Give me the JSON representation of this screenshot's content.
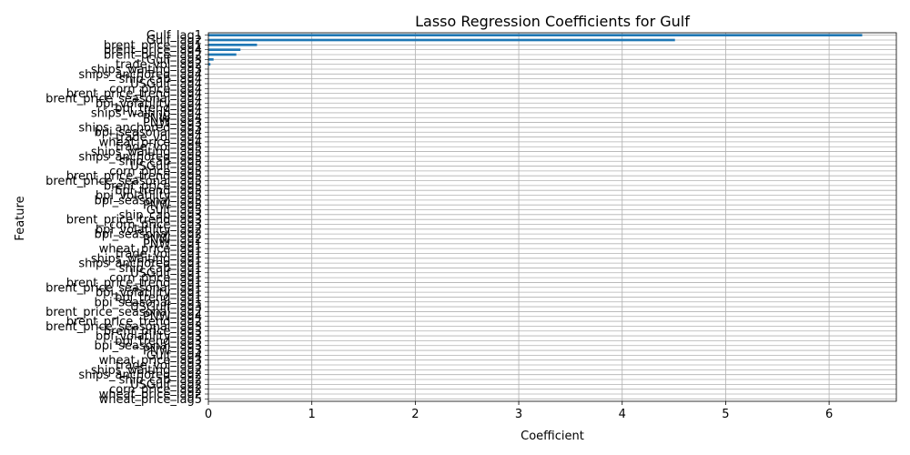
{
  "chart_data": {
    "type": "bar",
    "orientation": "horizontal",
    "title": "Lasso Regression Coefficients for Gulf",
    "xlabel": "Coefficient",
    "ylabel": "Feature",
    "xlim": [
      0,
      6.65
    ],
    "xticks": [
      0,
      1,
      2,
      3,
      4,
      5,
      6
    ],
    "grid": true,
    "bar_color": "#1f77b4",
    "categories": [
      "Gulf_lag1",
      "Gulf_lag2",
      "brent_price_lag1",
      "brent_price_lag4",
      "brent_price_lag2",
      "Gulf_lag3",
      "trade_vol_lag2",
      "ships_waiting_lag3",
      "ships_anchored_lag4",
      "ship_cap_lag4",
      "USGulf_lag4",
      "corn_price_lag4",
      "brent_price_trend_lag4",
      "brent_price_seasonal_lag4",
      "bpi_volatility_lag4",
      "bpi_trend_lag4",
      "ships_waiting_lag4",
      "PNW_lag4",
      "PNW_lag3",
      "ships_anchored_lag3",
      "bpi_seasonal_lag4",
      "trade_vol_lag4",
      "wheat_price_lag4",
      "trade_vol_lag5",
      "ships_waiting_lag5",
      "ships_anchored_lag5",
      "ship_cap_lag5",
      "USGulf_lag5",
      "corn_price_lag5",
      "brent_price_trend_lag5",
      "brent_price_seasonal_lag5",
      "brent_price_lag5",
      "bpi_trend_lag5",
      "bpi_volatility_lag5",
      "bpi_seasonal_lag5",
      "PNW_lag5",
      "Gulf_lag5",
      "ship_cap_lag3",
      "brent_price_trend_lag3",
      "corn_price_lag3",
      "bpi_volatility_lag2",
      "bpi_seasonal_lag2",
      "PNW_lag2",
      "PNW_lag1",
      "wheat_price_lag1",
      "trade_vol_lag1",
      "ships_waiting_lag1",
      "ships_anchored_lag1",
      "ship_cap_lag1",
      "USGulf_lag1",
      "corn_price_lag1",
      "brent_price_trend_lag1",
      "brent_price_seasonal_lag1",
      "bpi_volatility_lag1",
      "bpi_trend_lag1",
      "bpi_seasonal_lag1",
      "USGulf_lag3",
      "brent_price_seasonal_lag2",
      "PNW_lag4",
      "brent_price_trend_lag2",
      "brent_price_seasonal_lag3",
      "brent_price_lag3",
      "bpi_volatility_lag3",
      "bpi_trend_lag3",
      "bpi_seasonal_lag3",
      "PNW_lag3",
      "Gulf_lag4",
      "wheat_price_lag3",
      "trade_vol_lag3",
      "ships_waiting_lag2",
      "ships_anchored_lag2",
      "ship_cap_lag2",
      "USGulf_lag2",
      "corn_price_lag2",
      "wheat_price_lag2",
      "wheat_price_lag5"
    ],
    "values": [
      6.32,
      4.51,
      0.47,
      0.31,
      0.27,
      0.05,
      0.02,
      0,
      0,
      0,
      0,
      0,
      0,
      0,
      0,
      0,
      0,
      0,
      0,
      0,
      0,
      0,
      0,
      0,
      0,
      0,
      0,
      0,
      0,
      0,
      0,
      0,
      0,
      0,
      0,
      0,
      0,
      0,
      0,
      0,
      0,
      0,
      0,
      0,
      0,
      0,
      0,
      0,
      0,
      0,
      0,
      0,
      0,
      0,
      0,
      0,
      0,
      0,
      0,
      0,
      0,
      0,
      0,
      0,
      0,
      0,
      0,
      0,
      0,
      0,
      0,
      0,
      0,
      0,
      0,
      0
    ]
  }
}
